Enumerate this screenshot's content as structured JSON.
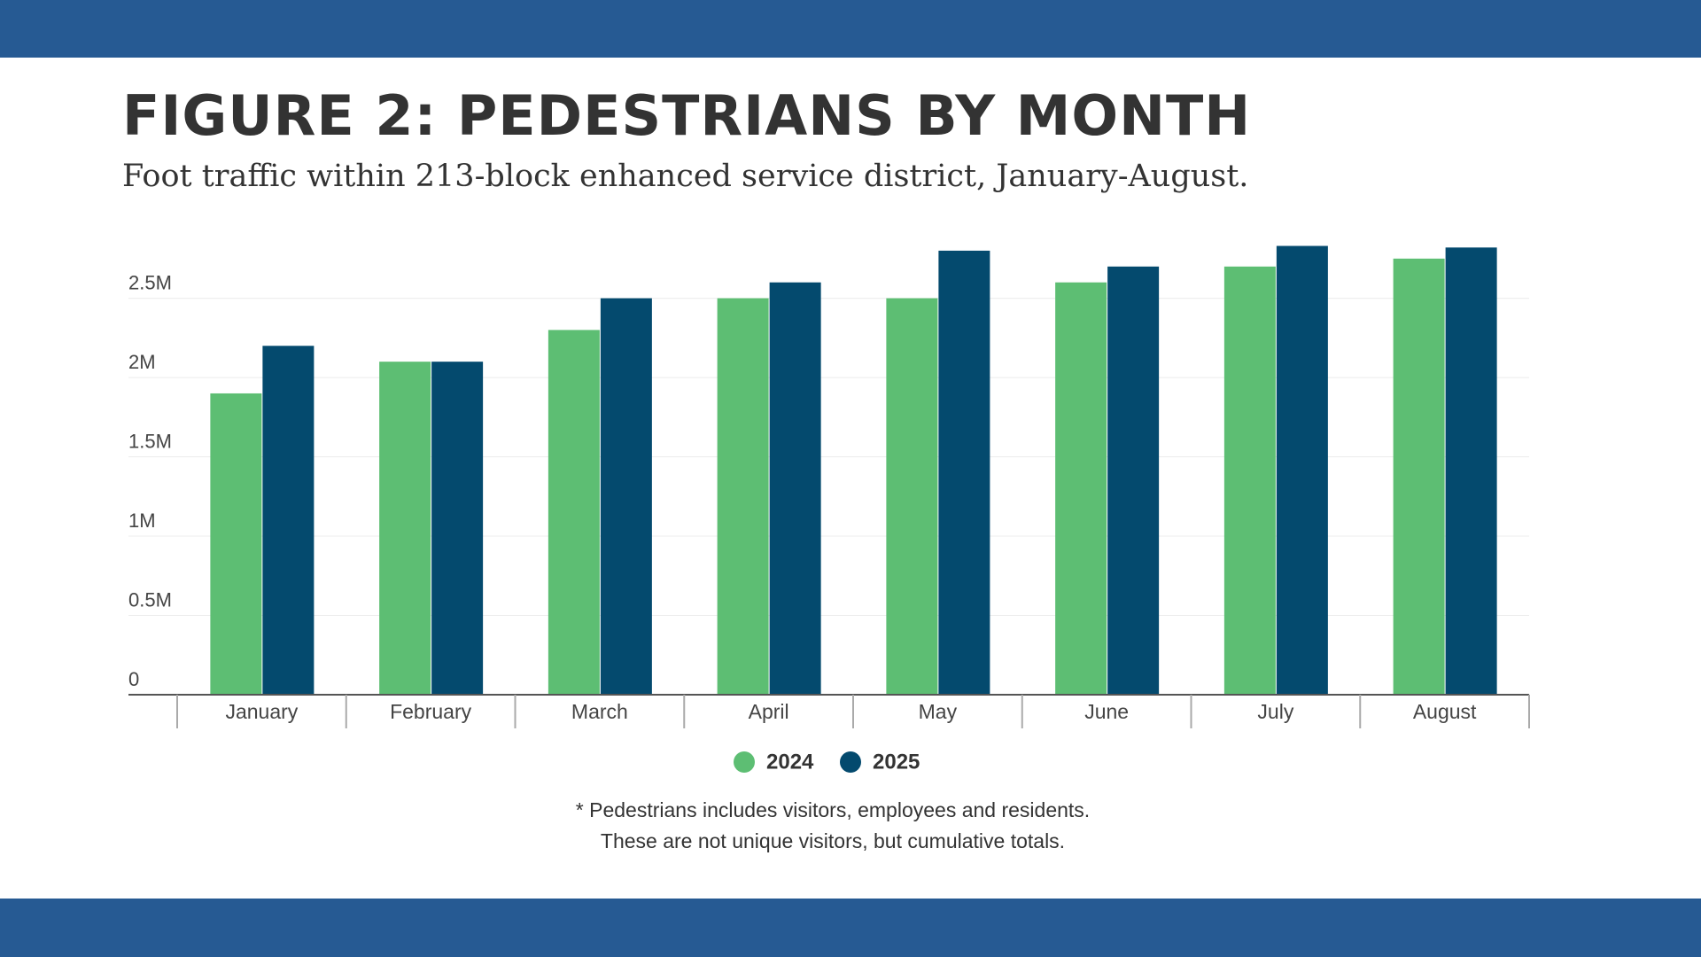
{
  "chart_data": {
    "type": "bar",
    "title": "FIGURE 2: PEDESTRIANS BY MONTH",
    "subtitle": "Foot traffic within 213-block enhanced service district, January-August.",
    "categories": [
      "January",
      "February",
      "March",
      "April",
      "May",
      "June",
      "July",
      "August"
    ],
    "series": [
      {
        "name": "2024",
        "color": "#5dbe73",
        "values": [
          1900000,
          2100000,
          2300000,
          2500000,
          2500000,
          2600000,
          2700000,
          2750000
        ]
      },
      {
        "name": "2025",
        "color": "#044a6e",
        "values": [
          2200000,
          2100000,
          2500000,
          2600000,
          2800000,
          2700000,
          2830000,
          2820000
        ]
      }
    ],
    "ylim": [
      0,
      2900000
    ],
    "yticks": [
      0,
      {
        "value": 500000,
        "label": "0.5M"
      },
      {
        "value": 1000000,
        "label": "1M"
      },
      {
        "value": 1500000,
        "label": "1.5M"
      },
      {
        "value": 2000000,
        "label": "2M"
      },
      {
        "value": 2500000,
        "label": "2.5M"
      }
    ],
    "grid": true,
    "legend": "bottom",
    "notes": [
      "* Pedestrians includes visitors, employees and residents.",
      "These are not unique visitors, but cumulative totals."
    ]
  }
}
